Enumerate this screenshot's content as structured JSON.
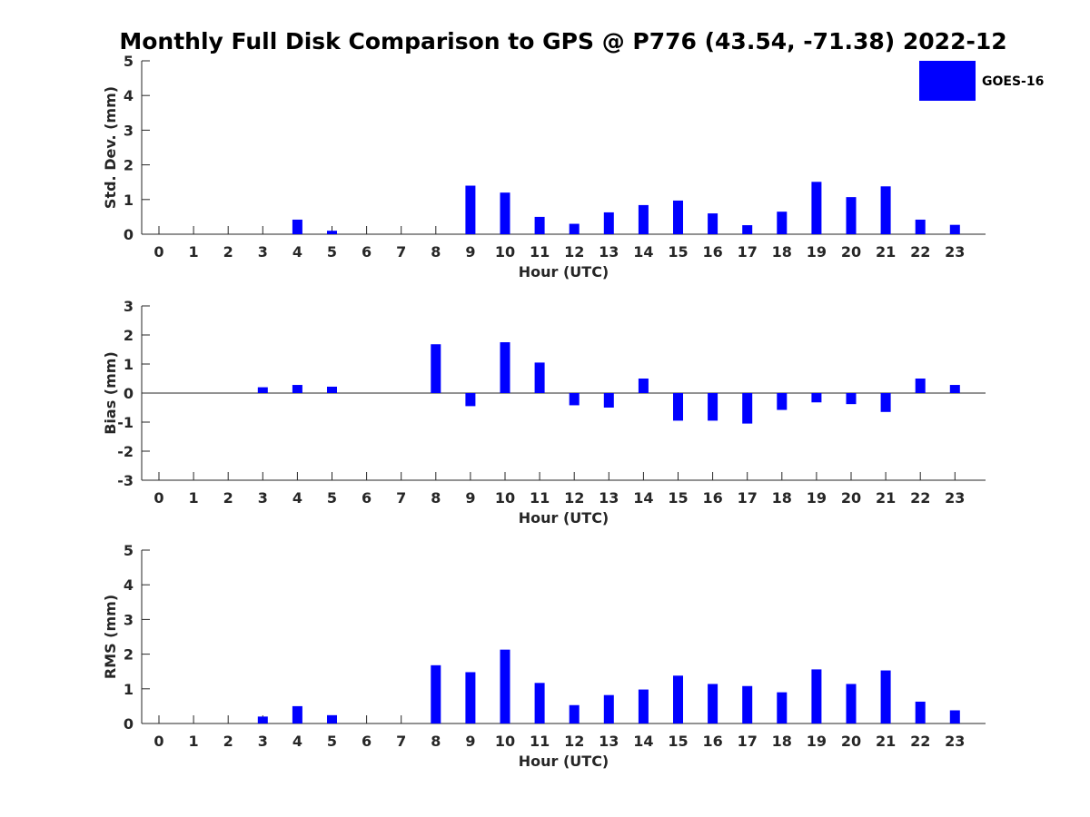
{
  "chart_data": {
    "type": "bar",
    "title": "Monthly Full Disk Comparison to GPS @ P776 (43.54, -71.38) 2022-12",
    "categories": [
      "0",
      "1",
      "2",
      "3",
      "4",
      "5",
      "6",
      "7",
      "8",
      "9",
      "10",
      "11",
      "12",
      "13",
      "14",
      "15",
      "16",
      "17",
      "18",
      "19",
      "20",
      "21",
      "22",
      "23"
    ],
    "series_color": "#0000ff",
    "legend": {
      "label": "GOES-16",
      "placement": "top-right"
    },
    "subplots": [
      {
        "name": "std-dev",
        "ylabel": "Std. Dev. (mm)",
        "xlabel": "Hour (UTC)",
        "ylim": [
          0,
          5
        ],
        "yticks": [
          0,
          1,
          2,
          3,
          4,
          5
        ],
        "values": [
          null,
          null,
          null,
          null,
          0.42,
          0.1,
          null,
          null,
          null,
          1.4,
          1.2,
          0.5,
          0.3,
          0.63,
          0.84,
          0.97,
          0.6,
          0.26,
          0.65,
          1.51,
          1.07,
          1.38,
          0.42,
          0.27
        ]
      },
      {
        "name": "bias",
        "ylabel": "Bias (mm)",
        "xlabel": "Hour (UTC)",
        "ylim": [
          -3,
          3
        ],
        "yticks": [
          -3,
          -2,
          -1,
          0,
          1,
          2,
          3
        ],
        "zero_line": true,
        "values": [
          null,
          null,
          null,
          0.2,
          0.28,
          0.22,
          null,
          null,
          1.68,
          -0.45,
          1.75,
          1.05,
          -0.42,
          -0.5,
          0.5,
          -0.95,
          -0.95,
          -1.05,
          -0.58,
          -0.32,
          -0.38,
          -0.65,
          0.5,
          0.28
        ]
      },
      {
        "name": "rms",
        "ylabel": "RMS (mm)",
        "xlabel": "Hour (UTC)",
        "ylim": [
          0,
          5
        ],
        "yticks": [
          0,
          1,
          2,
          3,
          4,
          5
        ],
        "values": [
          null,
          null,
          null,
          0.2,
          0.5,
          0.24,
          null,
          null,
          1.68,
          1.48,
          2.13,
          1.17,
          0.53,
          0.82,
          0.98,
          1.38,
          1.14,
          1.08,
          0.9,
          1.56,
          1.14,
          1.53,
          0.63,
          0.38
        ]
      }
    ]
  }
}
